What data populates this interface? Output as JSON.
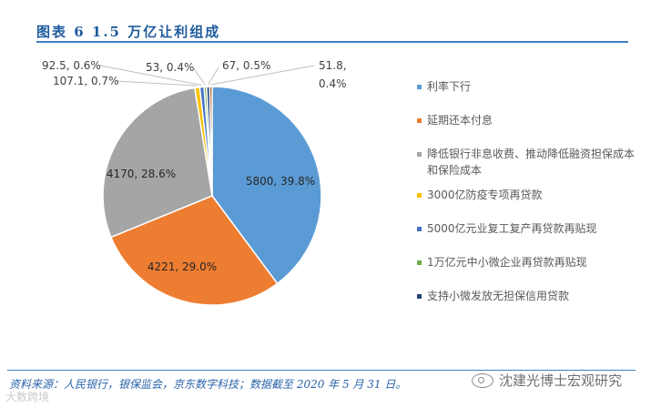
{
  "header": {
    "title": "图表 6   1.5 万亿让利组成"
  },
  "footer": {
    "source": "资料来源：人民银行，银保监会，京东数字科技；数据截至 2020 年 5 月 31 日。",
    "watermark_left": "大数跨境",
    "watermark_right": "沈建光博士宏观研究"
  },
  "chart_data": {
    "type": "pie",
    "title": "",
    "slices": [
      {
        "name": "利率下行",
        "value": 5800,
        "percent": "39.8%",
        "label": "5800, 39.8%",
        "color": "#5b9bd5"
      },
      {
        "name": "延期还本付息",
        "value": 4221,
        "percent": "29.0%",
        "label": "4221, 29.0%",
        "color": "#ed7d31"
      },
      {
        "name": "降低银行非息收费、推动降低融资担保成本和保险成本",
        "value": 4170,
        "percent": "28.6%",
        "label": "4170, 28.6%",
        "color": "#a5a5a5"
      },
      {
        "name": "3000亿防疫专项再贷款",
        "value": 107.1,
        "percent": "0.7%",
        "label": "107.1, 0.7%",
        "color": "#ffc000"
      },
      {
        "name": "5000亿元业复工复产再贷款再贴现",
        "value": 92.5,
        "percent": "0.6%",
        "label": "92.5, 0.6%",
        "color": "#4472c4"
      },
      {
        "name": "1万亿元中小微企业再贷款再贴现",
        "value": 53,
        "percent": "0.4%",
        "label": "53, 0.4%",
        "color": "#70ad47"
      },
      {
        "name": "支持小微发放无担保信用贷款",
        "value": 67,
        "percent": "0.5%",
        "label": "67, 0.5%",
        "color": "#264478"
      },
      {
        "name": "",
        "value": 51.8,
        "percent": "0.4%",
        "label": "51.8,\n0.4%",
        "color": "#9e480e"
      }
    ],
    "legend_position": "right"
  },
  "legend": [
    {
      "label": "利率下行",
      "color": "#5b9bd5"
    },
    {
      "label": "延期还本付息",
      "color": "#ed7d31"
    },
    {
      "label": "降低银行非息收费、推动降低融资担保成本和保险成本",
      "color": "#a5a5a5"
    },
    {
      "label": "3000亿防疫专项再贷款",
      "color": "#ffc000"
    },
    {
      "label": "5000亿元业复工复产再贷款再贴现",
      "color": "#4472c4"
    },
    {
      "label": "1万亿元中小微企业再贷款再贴现",
      "color": "#70ad47"
    },
    {
      "label": "支持小微发放无担保信用贷款",
      "color": "#264478"
    }
  ]
}
